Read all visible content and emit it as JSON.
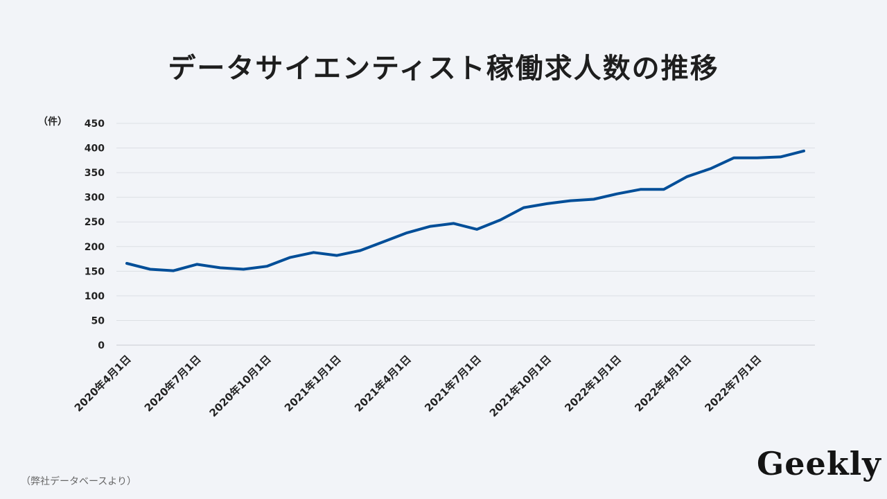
{
  "header": {
    "title": "データサイエンティスト稼働求人数の推移"
  },
  "footer": {
    "source": "（弊社データベースより）",
    "logo": "Geekly"
  },
  "chart_data": {
    "type": "line",
    "title": "データサイエンティスト稼働求人数の推移",
    "ylabel": "（件）",
    "xlabel": "",
    "ylim": [
      0,
      450
    ],
    "yticks": [
      0,
      50,
      100,
      150,
      200,
      250,
      300,
      350,
      400,
      450
    ],
    "grid": true,
    "x_tick_labels": [
      {
        "index": 0,
        "label": "2020年4月1日"
      },
      {
        "index": 3,
        "label": "2020年7月1日"
      },
      {
        "index": 6,
        "label": "2020年10月1日"
      },
      {
        "index": 9,
        "label": "2021年1月1日"
      },
      {
        "index": 12,
        "label": "2021年4月1日"
      },
      {
        "index": 15,
        "label": "2021年7月1日"
      },
      {
        "index": 18,
        "label": "2021年10月1日"
      },
      {
        "index": 21,
        "label": "2022年1月1日"
      },
      {
        "index": 24,
        "label": "2022年4月1日"
      },
      {
        "index": 27,
        "label": "2022年7月1日"
      }
    ],
    "series": [
      {
        "color": "#004e98",
        "values": [
          166,
          154,
          151,
          164,
          157,
          154,
          160,
          178,
          188,
          182,
          192,
          210,
          228,
          241,
          247,
          235,
          254,
          279,
          287,
          293,
          296,
          307,
          316,
          316,
          342,
          358,
          380,
          380,
          382,
          394
        ]
      }
    ]
  }
}
